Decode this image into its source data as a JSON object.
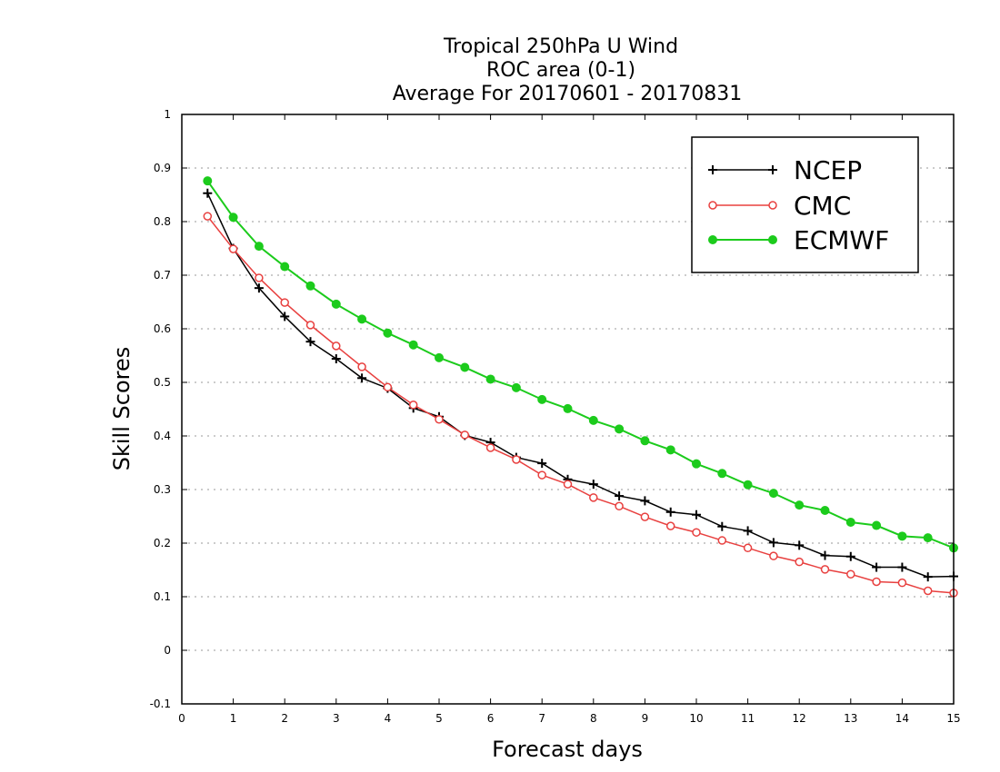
{
  "chart_data": {
    "type": "line",
    "title": [
      "Tropical 250hPa U Wind",
      "ROC area (0-1)",
      "Average For 20170601 - 20170831"
    ],
    "xlabel": "Forecast days",
    "ylabel": "Skill Scores",
    "xlim": [
      0,
      15
    ],
    "ylim": [
      -0.1,
      1
    ],
    "xticks": [
      "0",
      "1",
      "2",
      "3",
      "4",
      "5",
      "6",
      "7",
      "8",
      "9",
      "10",
      "11",
      "12",
      "13",
      "14",
      "15"
    ],
    "yticks": [
      "-0.1",
      "0",
      "0.1",
      "0.2",
      "0.3",
      "0.4",
      "0.5",
      "0.6",
      "0.7",
      "0.8",
      "0.9",
      "1"
    ],
    "grid": "horizontal dotted",
    "legend_position": "top-right",
    "x": [
      0.5,
      1,
      1.5,
      2,
      2.5,
      3,
      3.5,
      4,
      4.5,
      5,
      5.5,
      6,
      6.5,
      7,
      7.5,
      8,
      8.5,
      9,
      9.5,
      10,
      10.5,
      11,
      11.5,
      12,
      12.5,
      13,
      13.5,
      14,
      14.5,
      15
    ],
    "series": [
      {
        "name": "NCEP",
        "color": "#000000",
        "marker": "plus",
        "values": [
          0.853,
          0.75,
          0.676,
          0.623,
          0.576,
          0.544,
          0.508,
          0.489,
          0.452,
          0.436,
          0.401,
          0.388,
          0.36,
          0.349,
          0.319,
          0.31,
          0.288,
          0.279,
          0.258,
          0.253,
          0.231,
          0.223,
          0.201,
          0.196,
          0.177,
          0.175,
          0.155,
          0.155,
          0.137,
          0.138
        ]
      },
      {
        "name": "CMC",
        "color": "#e8403f",
        "marker": "open-circle",
        "values": [
          0.81,
          0.749,
          0.695,
          0.649,
          0.607,
          0.568,
          0.529,
          0.491,
          0.458,
          0.431,
          0.402,
          0.378,
          0.356,
          0.327,
          0.31,
          0.285,
          0.269,
          0.249,
          0.232,
          0.22,
          0.205,
          0.191,
          0.176,
          0.165,
          0.151,
          0.142,
          0.128,
          0.126,
          0.111,
          0.107
        ]
      },
      {
        "name": "ECMWF",
        "color": "#1ccb1c",
        "marker": "filled-circle",
        "values": [
          0.876,
          0.808,
          0.754,
          0.716,
          0.68,
          0.646,
          0.618,
          0.592,
          0.57,
          0.546,
          0.528,
          0.506,
          0.49,
          0.468,
          0.451,
          0.429,
          0.413,
          0.391,
          0.374,
          0.348,
          0.33,
          0.309,
          0.293,
          0.271,
          0.261,
          0.239,
          0.233,
          0.213,
          0.21,
          0.191
        ]
      }
    ]
  }
}
